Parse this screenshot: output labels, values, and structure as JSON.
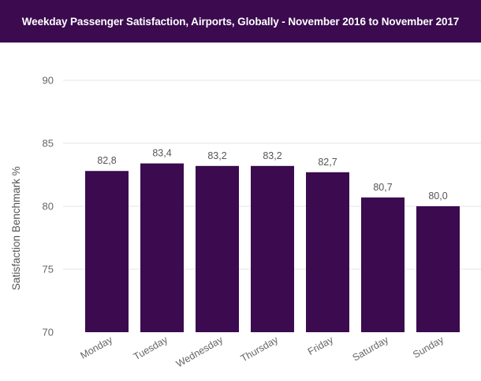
{
  "header": {
    "title": "Weekday Passenger Satisfaction, Airports, Globally - November 2016 to November 2017"
  },
  "colors": {
    "header_bg": "#3b0a4f",
    "bar": "#3b0a4f",
    "grid": "#e6e6e6"
  },
  "chart_data": {
    "type": "bar",
    "title": "Weekday Passenger Satisfaction, Airports, Globally - November 2016 to November 2017",
    "xlabel": "",
    "ylabel": "Satisfaction Benchmark %",
    "ylim": [
      70,
      90
    ],
    "yticks": [
      70,
      75,
      80,
      85,
      90
    ],
    "grid": true,
    "legend": "none",
    "categories": [
      "Monday",
      "Tuesday",
      "Wednesday",
      "Thursday",
      "Friday",
      "Saturday",
      "Sunday"
    ],
    "values": [
      82.8,
      83.4,
      83.2,
      83.2,
      82.7,
      80.7,
      80.0
    ],
    "value_labels": [
      "82,8",
      "83,4",
      "83,2",
      "83,2",
      "82,7",
      "80,7",
      "80,0"
    ]
  }
}
